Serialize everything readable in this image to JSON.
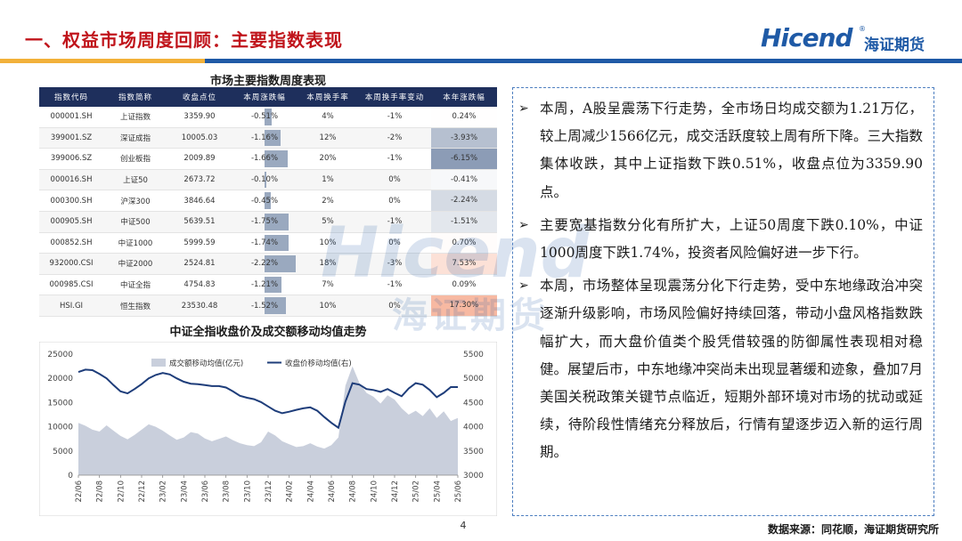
{
  "header": {
    "title": "一、权益市场周度回顾：主要指数表现",
    "logo_text": "Hicend",
    "logo_reg": "®",
    "logo_cn": "海证期货"
  },
  "watermark": {
    "text_en": "Hicend",
    "text_cn": "海证期货"
  },
  "table": {
    "title": "市场主要指数周度表现",
    "headers": [
      "指数代码",
      "指数简称",
      "收盘点位",
      "本周涨跌幅",
      "本周换手率",
      "本周换手率变动",
      "本年涨跌幅"
    ],
    "rows": [
      {
        "code": "000001.SH",
        "name": "上证指数",
        "close": "3359.90",
        "week_chg": "-0.51%",
        "week_chg_v": -0.51,
        "turnover": "4%",
        "turnover_chg": "-1%",
        "ytd": "0.24%",
        "ytd_v": 0.24
      },
      {
        "code": "399001.SZ",
        "name": "深证成指",
        "close": "10005.03",
        "week_chg": "-1.16%",
        "week_chg_v": -1.16,
        "turnover": "12%",
        "turnover_chg": "-2%",
        "ytd": "-3.93%",
        "ytd_v": -3.93
      },
      {
        "code": "399006.SZ",
        "name": "创业板指",
        "close": "2009.89",
        "week_chg": "-1.66%",
        "week_chg_v": -1.66,
        "turnover": "20%",
        "turnover_chg": "-1%",
        "ytd": "-6.15%",
        "ytd_v": -6.15
      },
      {
        "code": "000016.SH",
        "name": "上证50",
        "close": "2673.72",
        "week_chg": "-0.10%",
        "week_chg_v": -0.1,
        "turnover": "1%",
        "turnover_chg": "0%",
        "ytd": "-0.41%",
        "ytd_v": -0.41
      },
      {
        "code": "000300.SH",
        "name": "沪深300",
        "close": "3846.64",
        "week_chg": "-0.45%",
        "week_chg_v": -0.45,
        "turnover": "2%",
        "turnover_chg": "0%",
        "ytd": "-2.24%",
        "ytd_v": -2.24
      },
      {
        "code": "000905.SH",
        "name": "中证500",
        "close": "5639.51",
        "week_chg": "-1.75%",
        "week_chg_v": -1.75,
        "turnover": "5%",
        "turnover_chg": "-1%",
        "ytd": "-1.51%",
        "ytd_v": -1.51
      },
      {
        "code": "000852.SH",
        "name": "中证1000",
        "close": "5999.59",
        "week_chg": "-1.74%",
        "week_chg_v": -1.74,
        "turnover": "10%",
        "turnover_chg": "0%",
        "ytd": "0.70%",
        "ytd_v": 0.7
      },
      {
        "code": "932000.CSI",
        "name": "中证2000",
        "close": "2524.81",
        "week_chg": "-2.22%",
        "week_chg_v": -2.22,
        "turnover": "18%",
        "turnover_chg": "-3%",
        "ytd": "7.53%",
        "ytd_v": 7.53
      },
      {
        "code": "000985.CSI",
        "name": "中证全指",
        "close": "4754.83",
        "week_chg": "-1.21%",
        "week_chg_v": -1.21,
        "turnover": "7%",
        "turnover_chg": "-1%",
        "ytd": "0.09%",
        "ytd_v": 0.09
      },
      {
        "code": "HSI.GI",
        "name": "恒生指数",
        "close": "23530.48",
        "week_chg": "-1.52%",
        "week_chg_v": -1.52,
        "turnover": "10%",
        "turnover_chg": "0%",
        "ytd": "17.30%",
        "ytd_v": 17.3
      }
    ],
    "colors": {
      "bar": "#9aa9bf",
      "neg_max": "#8c9cb6",
      "pos_max": "#f7b9a2",
      "header_bg": "#1e2f5c"
    }
  },
  "chart_title": "中证全指收盘价及成交额移动均值走势",
  "chart_data": {
    "type": "area",
    "x_ticks": [
      "22/06",
      "22/08",
      "22/10",
      "22/12",
      "23/02",
      "23/04",
      "23/06",
      "23/08",
      "23/10",
      "23/12",
      "24/02",
      "24/04",
      "24/06",
      "24/08",
      "24/10",
      "24/12",
      "25/02",
      "25/04",
      "25/06"
    ],
    "y_left": {
      "ticks": [
        "0",
        "5000",
        "10000",
        "15000",
        "20000",
        "25000"
      ],
      "range": [
        0,
        25000
      ]
    },
    "y_right": {
      "ticks": [
        "3000",
        "3500",
        "4000",
        "4500",
        "5000",
        "5500"
      ],
      "range": [
        3000,
        5500
      ]
    },
    "series": [
      {
        "name": "成交额移动均值(亿元)",
        "axis": "left",
        "kind": "area",
        "color": "#c9cfdc",
        "values": [
          10800,
          10200,
          9400,
          9000,
          10300,
          9200,
          8100,
          7400,
          8300,
          9400,
          10500,
          10000,
          9200,
          8200,
          7300,
          7800,
          8900,
          8600,
          7600,
          7000,
          7500,
          8000,
          7200,
          6600,
          6200,
          6000,
          6800,
          9000,
          8200,
          7000,
          6400,
          5800,
          6000,
          6600,
          5900,
          5500,
          6200,
          7800,
          18500,
          22500,
          19000,
          17000,
          16200,
          14800,
          16500,
          15600,
          13800,
          12500,
          13300,
          12200,
          13800,
          11800,
          13200,
          11200,
          11800
        ]
      },
      {
        "name": "收盘价移动均值(右)",
        "axis": "right",
        "kind": "line",
        "color": "#1e3d7a",
        "values": [
          5130,
          5180,
          5170,
          5090,
          5000,
          4860,
          4730,
          4690,
          4780,
          4880,
          5000,
          5070,
          5110,
          5080,
          5000,
          4930,
          4890,
          4880,
          4860,
          4840,
          4840,
          4810,
          4730,
          4640,
          4600,
          4570,
          4510,
          4420,
          4330,
          4280,
          4310,
          4350,
          4380,
          4400,
          4330,
          4200,
          4080,
          3980,
          4520,
          4900,
          4870,
          4780,
          4760,
          4720,
          4780,
          4700,
          4630,
          4790,
          4900,
          4870,
          4760,
          4610,
          4700,
          4820,
          4820
        ]
      }
    ]
  },
  "commentary": [
    "本周，A股呈震荡下行走势，全市场日均成交额为1.21万亿，较上周减少1566亿元，成交活跃度较上周有所下降。三大指数集体收跌，其中上证指数下跌0.51%，收盘点位为3359.90点。",
    "主要宽基指数分化有所扩大，上证50周度下跌0.10%，中证1000周度下跌1.74%，投资者风险偏好进一步下行。",
    "本周，市场整体呈现震荡分化下行走势，受中东地缘政治冲突逐渐升级影响，市场风险偏好持续回落，带动小盘风格指数跌幅扩大，而大盘价值类个股凭借较强的防御属性表现相对稳健。展望后市，中东地缘冲突尚未出现显著缓和迹象，叠加7月美国关税政策关键节点临近，短期外部环境对市场的扰动或延续，待阶段性情绪充分释放后，行情有望逐步迈入新的运行周期。"
  ],
  "bullet_glyph": "➢",
  "footer": {
    "page_number": "4",
    "source": "数据来源：同花顺，海证期货研究所"
  }
}
